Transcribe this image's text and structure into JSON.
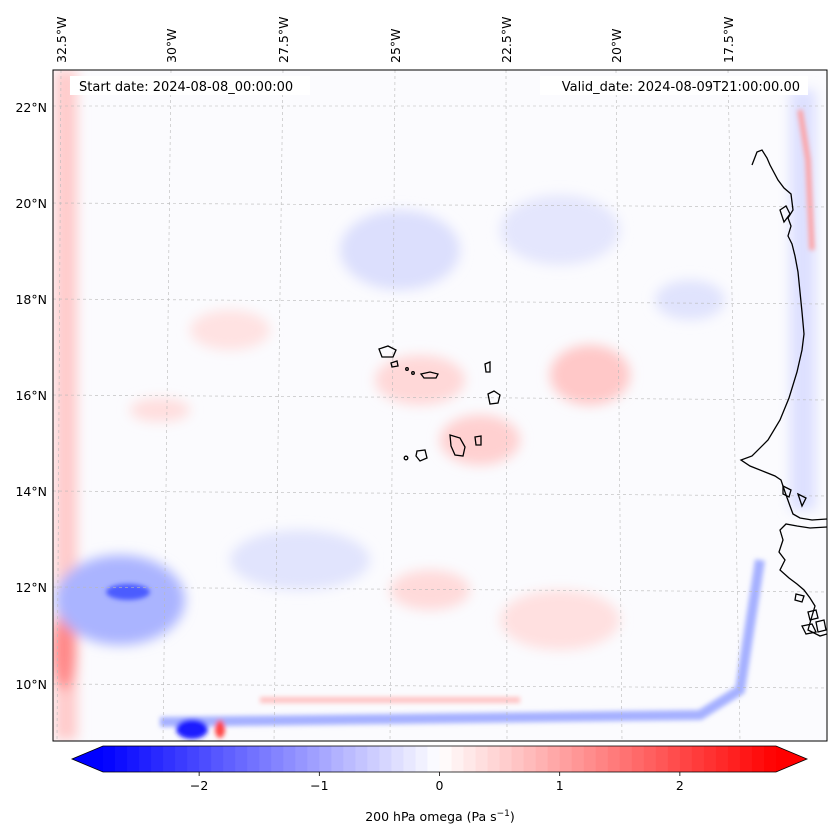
{
  "map": {
    "start_date": "Start date: 2024-08-08_00:00:00",
    "valid_date": "Valid_date: 2024-08-09T21:00:00.00",
    "longitude_labels": [
      "32.5°W",
      "30°W",
      "27.5°W",
      "25°W",
      "22.5°W",
      "20°W",
      "17.5°W"
    ],
    "latitude_labels": [
      "22°N",
      "20°N",
      "18°N",
      "16°N",
      "14°N",
      "12°N",
      "10°N"
    ],
    "field_name": "200 hPa omega",
    "colorscale": {
      "negative": "#0000ff",
      "zero": "#ffffff",
      "positive": "#ff0000"
    }
  },
  "colorbar": {
    "ticks": [
      "−2",
      "−1",
      "0",
      "1",
      "2"
    ],
    "tick_values": [
      -2,
      -1,
      0,
      1,
      2
    ],
    "range": [
      -2.8,
      2.8
    ],
    "label_main": "200 hPa omega (Pa s",
    "label_exp": "−1",
    "label_close": ")"
  }
}
